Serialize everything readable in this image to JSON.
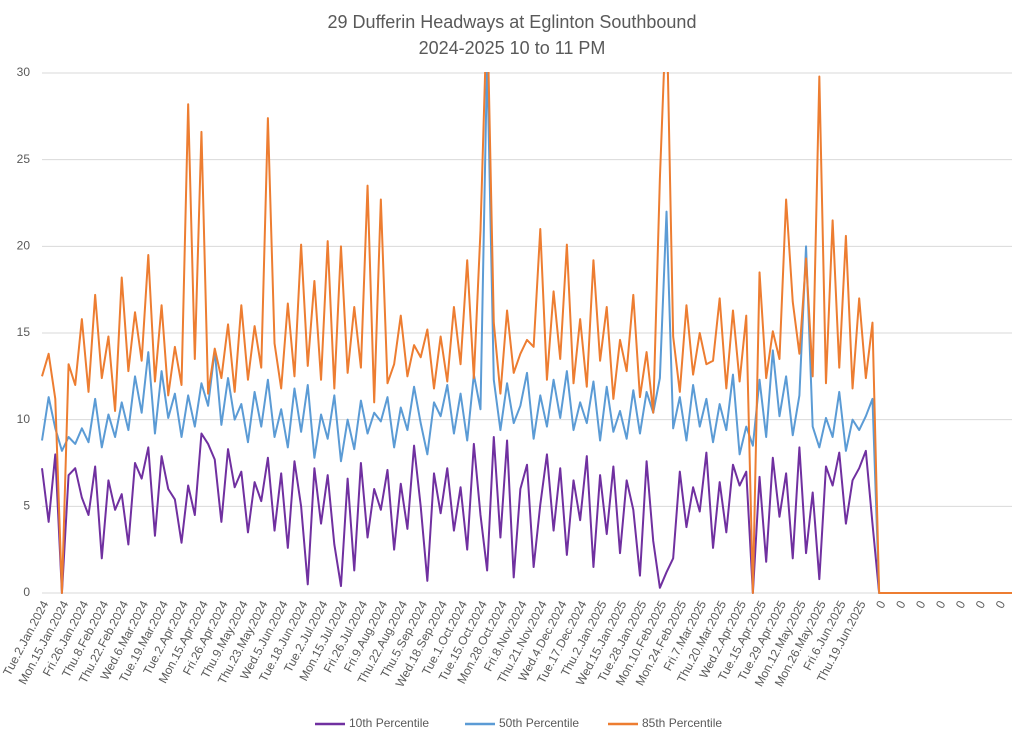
{
  "chart_data": {
    "type": "line",
    "title": "29 Dufferin Headways at Eglinton Southbound",
    "subtitle": "2024-2025 10 to 11 PM",
    "categories": [
      "Tue.2.Jan.2024",
      null,
      null,
      "Mon.15.Jan.2024",
      null,
      null,
      "Fri.26.Jan.2024",
      null,
      null,
      "Thu.8.Feb.2024",
      null,
      null,
      "Thu.22.Feb.2024",
      null,
      null,
      "Wed.6.Mar.2024",
      null,
      null,
      "Tue.19.Mar.2024",
      null,
      null,
      "Tue.2.Apr.2024",
      null,
      null,
      "Mon.15.Apr.2024",
      null,
      null,
      "Fri.26.Apr.2024",
      null,
      null,
      "Thu.9.May.2024",
      null,
      null,
      "Thu.23.May.2024",
      null,
      null,
      "Wed.5.Jun.2024",
      null,
      null,
      "Tue.18.Jun.2024",
      null,
      null,
      "Tue.2.Jul.2024",
      null,
      null,
      "Mon.15.Jul.2024",
      null,
      null,
      "Fri.26.Jul.2024",
      null,
      null,
      "Fri.9.Aug.2024",
      null,
      null,
      "Thu.22.Aug.2024",
      null,
      null,
      "Thu.5.Sep.2024",
      null,
      null,
      "Wed.18.Sep.2024",
      null,
      null,
      "Tue.1.Oct.2024",
      null,
      null,
      "Tue.15.Oct.2024",
      null,
      null,
      "Mon.28.Oct.2024",
      null,
      null,
      "Fri.8.Nov.2024",
      null,
      null,
      "Thu.21.Nov.2024",
      null,
      null,
      "Wed.4.Dec.2024",
      null,
      null,
      "Tue.17.Dec.2024",
      null,
      null,
      "Thu.2.Jan.2025",
      null,
      null,
      "Wed.15.Jan.2025",
      null,
      null,
      "Tue.28.Jan.2025",
      null,
      null,
      "Mon.10.Feb.2025",
      null,
      null,
      "Mon.24.Feb.2025",
      null,
      null,
      "Fri.7.Mar.2025",
      null,
      null,
      "Thu.20.Mar.2025",
      null,
      null,
      "Wed.2.Apr.2025",
      null,
      null,
      "Tue.15.Apr.2025",
      null,
      null,
      "Tue.29.Apr.2025",
      null,
      null,
      "Mon.12.May.2025",
      null,
      null,
      "Mon.26.May.2025",
      null,
      null,
      "Fri.6.Jun.2025",
      null,
      null,
      "Thu.19.Jun.2025",
      null,
      null,
      "0",
      null,
      null,
      "0",
      null,
      null,
      "0",
      null,
      null,
      "0",
      null,
      null,
      "0",
      null,
      null,
      "0",
      null,
      null,
      "0",
      null,
      null
    ],
    "series": [
      {
        "name": "10th Percentile",
        "color": "#7030a0",
        "values": [
          7.2,
          4.1,
          8.0,
          0,
          6.8,
          7.2,
          5.5,
          4.5,
          7.3,
          2.0,
          6.5,
          4.8,
          5.7,
          2.8,
          7.5,
          6.6,
          8.4,
          3.3,
          7.9,
          6.0,
          5.4,
          2.9,
          6.2,
          4.5,
          9.2,
          8.6,
          7.7,
          4.1,
          8.3,
          6.1,
          7.0,
          3.5,
          6.4,
          5.3,
          7.8,
          3.6,
          6.9,
          2.6,
          7.6,
          5.0,
          0.5,
          7.2,
          4.0,
          6.8,
          2.8,
          0.4,
          6.6,
          1.3,
          7.5,
          3.2,
          6.0,
          4.8,
          7.1,
          2.5,
          6.3,
          3.7,
          8.5,
          5.0,
          0.7,
          6.9,
          4.6,
          7.2,
          3.6,
          6.1,
          2.5,
          8.6,
          4.5,
          1.3,
          9.0,
          3.2,
          8.8,
          0.9,
          6.0,
          7.4,
          1.5,
          5.1,
          8.0,
          3.6,
          7.2,
          2.2,
          6.5,
          4.2,
          7.9,
          1.5,
          6.8,
          3.4,
          7.3,
          2.3,
          6.5,
          4.8,
          1.0,
          7.6,
          3.0,
          0.3,
          1.2,
          2.0,
          7.0,
          3.8,
          6.1,
          4.7,
          8.1,
          2.6,
          6.4,
          3.5,
          7.4,
          6.2,
          7.0,
          0,
          6.7,
          1.8,
          7.8,
          4.4,
          6.9,
          2.0,
          8.4,
          2.3,
          5.8,
          0.8,
          7.3,
          6.2,
          8.1,
          4.0,
          6.5,
          7.2,
          8.2,
          4.0,
          0,
          0,
          0,
          0,
          0,
          0,
          0,
          0,
          0,
          0,
          0,
          0,
          0,
          0,
          0,
          0,
          0,
          0,
          0,
          0,
          0
        ]
      },
      {
        "name": "50th Percentile",
        "color": "#5b9bd5",
        "values": [
          8.8,
          11.3,
          9.5,
          8.2,
          9.0,
          8.6,
          9.5,
          8.7,
          11.2,
          8.4,
          10.3,
          9.0,
          11.0,
          9.4,
          12.5,
          10.4,
          13.9,
          9.2,
          12.8,
          10.1,
          11.5,
          9.0,
          11.4,
          9.6,
          12.1,
          10.8,
          14.0,
          9.7,
          12.4,
          10.0,
          10.9,
          8.7,
          11.6,
          9.6,
          12.3,
          9.0,
          10.6,
          8.4,
          11.8,
          9.3,
          12.0,
          7.8,
          10.3,
          8.9,
          11.4,
          7.6,
          10.0,
          8.3,
          11.1,
          9.2,
          10.4,
          9.9,
          11.3,
          8.4,
          10.7,
          9.4,
          11.9,
          9.8,
          8.0,
          11.0,
          10.2,
          12.0,
          9.2,
          11.5,
          8.8,
          12.6,
          10.6,
          31.0,
          12.3,
          9.4,
          12.1,
          9.8,
          10.8,
          12.7,
          8.9,
          11.4,
          9.6,
          12.3,
          10.1,
          12.8,
          9.4,
          11.0,
          9.8,
          12.2,
          8.8,
          11.9,
          9.3,
          10.5,
          8.9,
          11.7,
          9.2,
          11.6,
          10.4,
          12.4,
          22.0,
          9.5,
          11.3,
          8.8,
          12.0,
          9.6,
          11.2,
          8.7,
          10.9,
          9.4,
          12.6,
          8.0,
          9.6,
          8.5,
          12.3,
          9.0,
          14.0,
          10.2,
          12.5,
          9.1,
          11.4,
          20.0,
          9.6,
          8.4,
          10.1,
          9.0,
          11.6,
          8.2,
          10.0,
          9.4,
          10.2,
          11.2,
          0,
          0,
          0,
          0,
          0,
          0,
          0,
          0,
          0,
          0,
          0,
          0,
          0,
          0,
          0,
          0,
          0,
          0,
          0,
          0,
          0
        ]
      },
      {
        "name": "85th Percentile",
        "color": "#ed7d31",
        "values": [
          12.5,
          13.8,
          11.2,
          0,
          13.2,
          12.0,
          15.8,
          11.6,
          17.2,
          12.4,
          14.8,
          10.5,
          18.2,
          12.8,
          16.2,
          13.4,
          19.5,
          12.2,
          16.6,
          11.4,
          14.2,
          12.0,
          28.2,
          13.5,
          26.6,
          11.5,
          14.1,
          12.4,
          15.5,
          11.6,
          16.6,
          12.3,
          15.4,
          13.0,
          27.4,
          14.4,
          11.8,
          16.7,
          12.5,
          20.1,
          13.1,
          18.0,
          12.3,
          20.3,
          11.8,
          20.0,
          12.7,
          16.5,
          13.0,
          23.5,
          11.0,
          22.7,
          12.1,
          13.2,
          16.0,
          12.5,
          14.3,
          13.6,
          15.2,
          11.8,
          14.8,
          12.2,
          16.5,
          13.2,
          19.2,
          12.4,
          20.9,
          34.0,
          15.6,
          11.5,
          16.3,
          12.7,
          13.8,
          14.6,
          14.2,
          21.0,
          12.3,
          17.4,
          13.5,
          20.1,
          12.1,
          15.8,
          11.9,
          19.2,
          13.4,
          16.5,
          11.2,
          14.6,
          12.8,
          17.2,
          11.3,
          13.9,
          10.4,
          23.9,
          34.0,
          14.8,
          11.6,
          16.6,
          12.6,
          15.0,
          13.2,
          13.4,
          17.0,
          11.8,
          16.3,
          12.2,
          16.0,
          0,
          18.5,
          12.4,
          15.1,
          13.5,
          22.7,
          16.8,
          13.8,
          19.3,
          12.5,
          29.8,
          12.1,
          21.5,
          13.0,
          20.6,
          11.8,
          17.0,
          12.4,
          15.6,
          0,
          0,
          0,
          0,
          0,
          0,
          0,
          0,
          0,
          0,
          0,
          0,
          0,
          0,
          0,
          0,
          0,
          0,
          0,
          0,
          0
        ]
      }
    ],
    "ylim": [
      0,
      30
    ],
    "yticks": [
      0,
      5,
      10,
      15,
      20,
      25,
      30
    ],
    "grid": true
  }
}
